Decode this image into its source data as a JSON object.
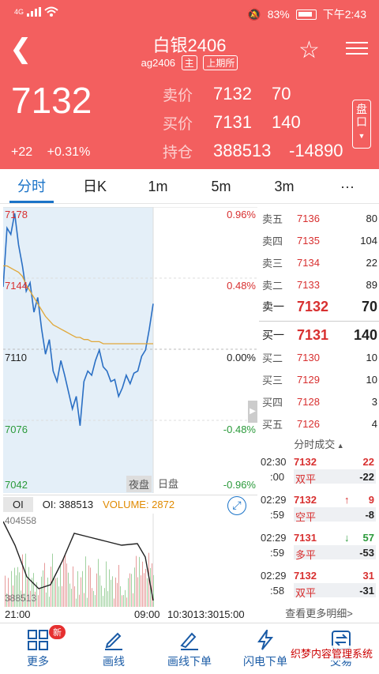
{
  "status": {
    "network": "4G",
    "battery": "83%",
    "time": "下午2:43"
  },
  "header": {
    "title": "白银2406",
    "code": "ag2406",
    "tag_main": "主",
    "tag_exchange": "上期所",
    "last_price": "7132",
    "change": "+22",
    "change_pct": "+0.31%",
    "quotes": [
      {
        "label": "卖价",
        "v1": "7132",
        "v2": "70"
      },
      {
        "label": "买价",
        "v1": "7131",
        "v2": "140"
      },
      {
        "label": "持仓",
        "v1": "388513",
        "v2": "-14890"
      }
    ],
    "pankou": "盘口"
  },
  "tabs": [
    "分时",
    "日K",
    "1m",
    "5m",
    "3m",
    "···"
  ],
  "chart": {
    "left_labels": [
      "7178",
      "7144",
      "7110",
      "7076",
      "7042"
    ],
    "right_labels": [
      "0.96%",
      "0.48%",
      "0.00%",
      "-0.48%",
      "-0.96%"
    ],
    "session_labels": [
      "夜盘",
      "日盘"
    ]
  },
  "chart_data": {
    "type": "line",
    "title": "",
    "ylim": [
      7042,
      7178
    ],
    "series": [
      {
        "values": [
          7140,
          7168,
          7165,
          7175,
          7160,
          7150,
          7138,
          7142,
          7128,
          7135,
          7120,
          7108,
          7115,
          7100,
          7095,
          7105,
          7098,
          7090,
          7082,
          7088,
          7074,
          7095,
          7100,
          7098,
          7105,
          7110,
          7102,
          7100,
          7095,
          7096,
          7088,
          7092,
          7098,
          7094,
          7099,
          7100,
          7107,
          7110,
          7120,
          7132
        ]
      },
      {
        "values": [
          7150,
          7150,
          7149,
          7148,
          7147,
          7145,
          7141,
          7138,
          7135,
          7132,
          7129,
          7126,
          7124,
          7122,
          7121,
          7120,
          7119,
          7118,
          7117,
          7116,
          7116,
          7115,
          7115,
          7114,
          7114,
          7114,
          7113,
          7113,
          7113,
          7113,
          7113,
          7113,
          7113,
          7113,
          7113,
          7113,
          7113,
          7113,
          7113,
          7113
        ]
      }
    ]
  },
  "orderbook": {
    "asks": [
      {
        "label": "卖五",
        "price": "7136",
        "qty": "80"
      },
      {
        "label": "卖四",
        "price": "7135",
        "qty": "104"
      },
      {
        "label": "卖三",
        "price": "7134",
        "qty": "22"
      },
      {
        "label": "卖二",
        "price": "7133",
        "qty": "89"
      },
      {
        "label": "卖一",
        "price": "7132",
        "qty": "70"
      }
    ],
    "bids": [
      {
        "label": "买一",
        "price": "7131",
        "qty": "140"
      },
      {
        "label": "买二",
        "price": "7130",
        "qty": "10"
      },
      {
        "label": "买三",
        "price": "7129",
        "qty": "10"
      },
      {
        "label": "买四",
        "price": "7128",
        "qty": "3"
      },
      {
        "label": "买五",
        "price": "7126",
        "qty": "4"
      }
    ]
  },
  "trades": {
    "title": "分时成交",
    "items": [
      {
        "t1": "02:30",
        "t2": ":00",
        "price": "7132",
        "vol": "22",
        "type": "双平",
        "chg": "-22",
        "arrow": ""
      },
      {
        "t1": "02:29",
        "t2": ":59",
        "price": "7132",
        "vol": "9",
        "type": "空平",
        "chg": "-8",
        "arrow": "↑"
      },
      {
        "t1": "02:29",
        "t2": ":59",
        "price": "7131",
        "vol": "57",
        "type": "多平",
        "chg": "-53",
        "arrow": "↓"
      },
      {
        "t1": "02:29",
        "t2": ":58",
        "price": "7132",
        "vol": "31",
        "type": "双平",
        "chg": "-31",
        "arrow": ""
      }
    ],
    "more": "查看更多明细>"
  },
  "oi": {
    "tab": "OI",
    "oi_label": "OI: 388513",
    "volume_label": "VOLUME: 2872",
    "top": "404558",
    "bottom": "388513"
  },
  "timeaxis": [
    "21:00",
    "09:00",
    "10:3013:3015:00"
  ],
  "bottomnav": [
    {
      "label": "更多",
      "badge": "新"
    },
    {
      "label": "画线"
    },
    {
      "label": "画线下单"
    },
    {
      "label": "闪电下单"
    },
    {
      "label": "交易"
    }
  ],
  "watermark": "织梦内容管理系统"
}
